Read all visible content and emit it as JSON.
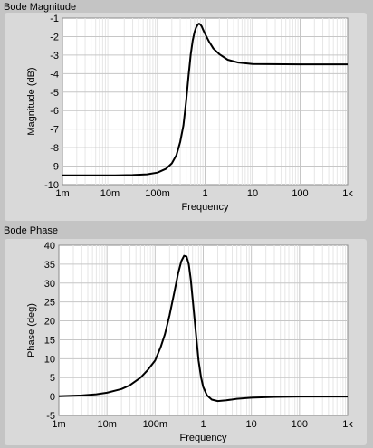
{
  "chart_data": [
    {
      "type": "line",
      "panel_title": "Bode Magnitude",
      "xlabel": "Frequency",
      "ylabel": "Magnitude (dB)",
      "x_scale": "log",
      "xlim": [
        0.001,
        1000
      ],
      "ylim": [
        -10,
        -1
      ],
      "x_ticks": [
        "1m",
        "10m",
        "100m",
        "1",
        "10",
        "100",
        "1k"
      ],
      "y_ticks": [
        "-1",
        "-2",
        "-3",
        "-4",
        "-5",
        "-6",
        "-7",
        "-8",
        "-9",
        "-10"
      ],
      "grid": true,
      "series": [
        {
          "x": [
            0.001,
            0.01,
            0.03,
            0.06,
            0.1,
            0.15,
            0.2,
            0.25,
            0.3,
            0.35,
            0.4,
            0.45,
            0.5,
            0.55,
            0.6,
            0.65,
            0.7,
            0.75,
            0.8,
            0.85,
            0.9,
            1.0,
            1.2,
            1.5,
            2,
            3,
            5,
            10,
            100,
            1000
          ],
          "y": [
            -9.5,
            -9.5,
            -9.48,
            -9.44,
            -9.35,
            -9.15,
            -8.85,
            -8.4,
            -7.7,
            -6.8,
            -5.5,
            -4.1,
            -2.95,
            -2.2,
            -1.75,
            -1.5,
            -1.35,
            -1.3,
            -1.35,
            -1.45,
            -1.6,
            -1.85,
            -2.25,
            -2.65,
            -2.95,
            -3.25,
            -3.4,
            -3.48,
            -3.5,
            -3.5
          ]
        }
      ]
    },
    {
      "type": "line",
      "panel_title": "Bode Phase",
      "xlabel": "Frequency",
      "ylabel": "Phase (deg)",
      "x_scale": "log",
      "xlim": [
        0.001,
        1000
      ],
      "ylim": [
        -5,
        40
      ],
      "x_ticks": [
        "1m",
        "10m",
        "100m",
        "1",
        "10",
        "100",
        "1k"
      ],
      "y_ticks": [
        "40",
        "35",
        "30",
        "25",
        "20",
        "15",
        "10",
        "5",
        "0",
        "-5"
      ],
      "grid": true,
      "series": [
        {
          "x": [
            0.001,
            0.003,
            0.006,
            0.01,
            0.02,
            0.03,
            0.05,
            0.07,
            0.1,
            0.13,
            0.16,
            0.2,
            0.25,
            0.3,
            0.35,
            0.4,
            0.45,
            0.5,
            0.55,
            0.6,
            0.7,
            0.8,
            0.9,
            1.0,
            1.2,
            1.5,
            2,
            3,
            5,
            10,
            30,
            100,
            1000
          ],
          "y": [
            0.1,
            0.3,
            0.6,
            1.0,
            2.0,
            3.0,
            5.0,
            7.0,
            9.5,
            13.0,
            16.5,
            21.5,
            27.5,
            32.5,
            35.8,
            37.2,
            37.0,
            35.0,
            31.0,
            26.0,
            17.0,
            9.5,
            5.0,
            2.5,
            0.3,
            -0.8,
            -1.2,
            -1.0,
            -0.6,
            -0.3,
            -0.1,
            0.0,
            0.0
          ]
        }
      ]
    }
  ]
}
